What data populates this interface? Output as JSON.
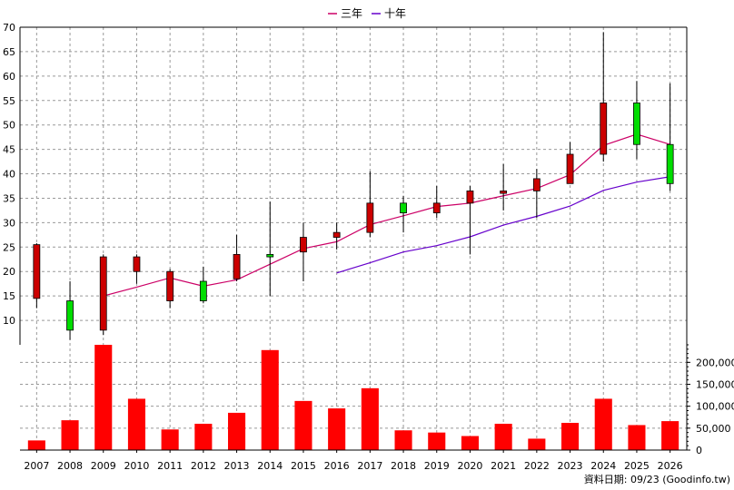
{
  "chart_data": {
    "type": "candlestick+bar",
    "legend": {
      "placement": "top-center",
      "items": [
        {
          "label": "三年",
          "color": "#cc0066"
        },
        {
          "label": "十年",
          "color": "#6600cc"
        }
      ]
    },
    "years": [
      "2007",
      "2008",
      "2009",
      "2010",
      "2011",
      "2012",
      "2013",
      "2014",
      "2015",
      "2016",
      "2017",
      "2018",
      "2019",
      "2020",
      "2021",
      "2022",
      "2023",
      "2024",
      "2025",
      "2026"
    ],
    "price_panel": {
      "ylim": [
        5,
        70
      ],
      "yticks": [
        10,
        15,
        20,
        25,
        30,
        35,
        40,
        45,
        50,
        55,
        60,
        65,
        70
      ],
      "grid": true,
      "candles": [
        {
          "year": "2007",
          "open": 14.5,
          "close": 25.5,
          "high": 25.8,
          "low": 12.5
        },
        {
          "year": "2008",
          "open": 14.0,
          "close": 8.0,
          "high": 18.0,
          "low": 6.0
        },
        {
          "year": "2009",
          "open": 8.0,
          "close": 23.0,
          "high": 23.5,
          "low": 7.0
        },
        {
          "year": "2010",
          "open": 20.0,
          "close": 23.0,
          "high": 23.5,
          "low": 17.5
        },
        {
          "year": "2011",
          "open": 14.0,
          "close": 20.0,
          "high": 20.5,
          "low": 12.5
        },
        {
          "year": "2012",
          "open": 18.0,
          "close": 14.0,
          "high": 21.0,
          "low": 13.5
        },
        {
          "year": "2013",
          "open": 18.5,
          "close": 23.5,
          "high": 27.5,
          "low": 18.0
        },
        {
          "year": "2014",
          "open": 23.5,
          "close": 23.0,
          "high": 34.3,
          "low": 15.0
        },
        {
          "year": "2015",
          "open": 24.0,
          "close": 27.0,
          "high": 30.0,
          "low": 18.0
        },
        {
          "year": "2016",
          "open": 27.0,
          "close": 28.0,
          "high": 30.0,
          "low": 24.5
        },
        {
          "year": "2017",
          "open": 28.0,
          "close": 34.0,
          "high": 40.5,
          "low": 27.0
        },
        {
          "year": "2018",
          "open": 34.0,
          "close": 32.0,
          "high": 35.5,
          "low": 28.0
        },
        {
          "year": "2019",
          "open": 32.0,
          "close": 34.0,
          "high": 37.5,
          "low": 31.0
        },
        {
          "year": "2020",
          "open": 34.0,
          "close": 36.5,
          "high": 37.5,
          "low": 23.5
        },
        {
          "year": "2021",
          "open": 36.0,
          "close": 36.5,
          "high": 42.0,
          "low": 32.5
        },
        {
          "year": "2022",
          "open": 36.5,
          "close": 39.0,
          "high": 41.0,
          "low": 31.0
        },
        {
          "year": "2023",
          "open": 38.0,
          "close": 44.0,
          "high": 46.5,
          "low": 38.0
        },
        {
          "year": "2024",
          "open": 44.0,
          "close": 54.5,
          "high": 69.0,
          "low": 42.5
        },
        {
          "year": "2025",
          "open": 54.5,
          "close": 46.0,
          "high": 59.0,
          "low": 43.0
        },
        {
          "year": "2026",
          "open": 46.0,
          "close": 38.0,
          "high": 58.5,
          "low": 36.5
        }
      ],
      "series": [
        {
          "name": "三年",
          "color": "#cc0066",
          "start_year": "2009",
          "values": [
            15.0,
            16.8,
            18.7,
            17.0,
            18.3,
            21.5,
            24.7,
            26.1,
            29.6,
            31.4,
            33.3,
            34.0,
            35.5,
            37.0,
            39.8,
            45.8,
            48.1,
            46.0
          ]
        },
        {
          "name": "十年",
          "color": "#6600cc",
          "start_year": "2016",
          "values": [
            19.7,
            21.8,
            24.0,
            25.3,
            27.1,
            29.5,
            31.3,
            33.4,
            36.6,
            38.3,
            39.4
          ]
        }
      ],
      "rising_color": "#cc0000",
      "falling_color": "#00dd00"
    },
    "volume_panel": {
      "ylim": [
        0,
        240000
      ],
      "yticks": [
        0,
        50000,
        100000,
        150000,
        200000
      ],
      "ytick_labels": [
        "0",
        "50,000",
        "100,000",
        "150,000",
        "200,000"
      ],
      "grid": true,
      "color": "#ff0000",
      "values": [
        22000,
        68000,
        240000,
        117000,
        47000,
        60000,
        85000,
        228000,
        112000,
        95000,
        141000,
        45000,
        40000,
        32000,
        60000,
        26000,
        62000,
        117000,
        57000,
        66000
      ]
    },
    "footnote": "資料日期: 09/23  (Goodinfo.tw)"
  }
}
